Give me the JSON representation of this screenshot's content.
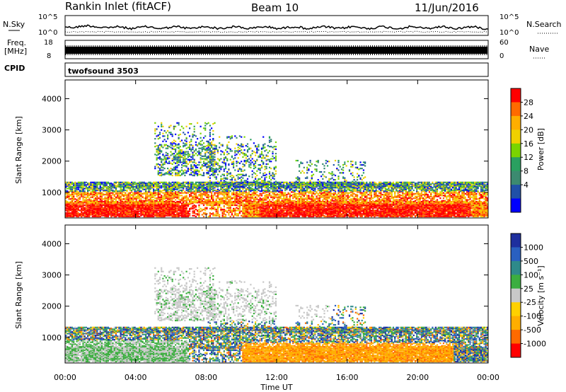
{
  "header": {
    "station": "Rankin Inlet (fitACF)",
    "beam": "Beam 10",
    "date": "11/Jun/2016"
  },
  "strips": {
    "nsky": {
      "label": "N.Sky",
      "ticks": [
        "10^5",
        "10^0"
      ],
      "right_label": "N.Search",
      "right_ticks": [
        "10^5",
        "10^0"
      ]
    },
    "freq": {
      "label": "Freq.",
      "unit": "[MHz]",
      "ticks": [
        "18",
        "8"
      ],
      "right_label": "Nave",
      "right_ticks": [
        "60",
        "0"
      ]
    },
    "cpid": {
      "label": "CPID",
      "text": "twofsound 3503"
    }
  },
  "chart_data": [
    {
      "type": "heatmap",
      "name": "power",
      "ylabel": "Slant Range [km]",
      "yticks": [
        1000,
        2000,
        3000,
        4000
      ],
      "ylim": [
        180,
        4600
      ],
      "xlim": [
        0,
        24
      ],
      "colorbar_label": "Power [dB]",
      "colorbar_ticks": [
        "28",
        "24",
        "20",
        "16",
        "12",
        "8",
        "4"
      ],
      "colorbar_colors": [
        "#ff0000",
        "#ff6a00",
        "#ffae00",
        "#f0d000",
        "#7ad400",
        "#2aa060",
        "#3c8a70",
        "#2050a8",
        "#0000ff"
      ]
    },
    {
      "type": "heatmap",
      "name": "velocity",
      "ylabel": "Slant Range [km]",
      "yticks": [
        1000,
        2000,
        3000,
        4000
      ],
      "ylim": [
        180,
        4600
      ],
      "xlim": [
        0,
        24
      ],
      "xlabel": "Time UT",
      "xticks": [
        "00:00",
        "04:00",
        "08:00",
        "12:00",
        "16:00",
        "20:00",
        "00:00"
      ],
      "colorbar_label": "Velocity [m s⁻¹]",
      "colorbar_ticks": [
        "1000",
        "500",
        "100",
        "25",
        "-25",
        "-100",
        "-500",
        "-1000"
      ],
      "colorbar_colors": [
        "#1e2f9e",
        "#2a60c0",
        "#2e8a8a",
        "#3cae40",
        "#c8c8c8",
        "#ffd000",
        "#ffae00",
        "#ff6a00",
        "#ff0000"
      ]
    }
  ]
}
